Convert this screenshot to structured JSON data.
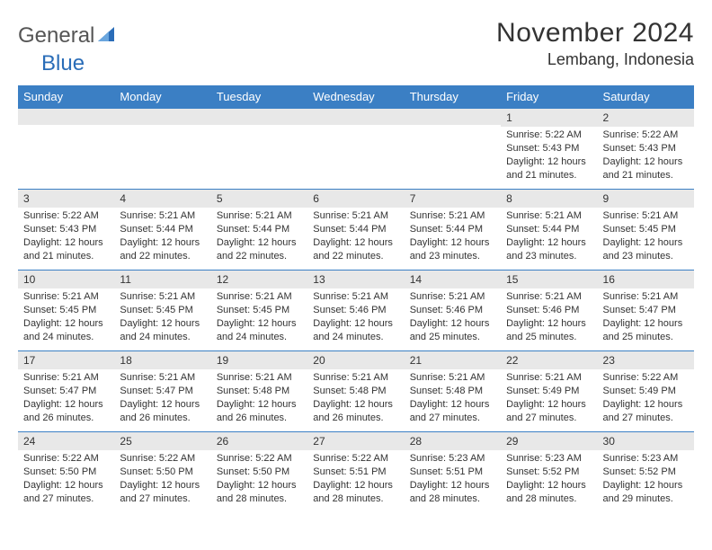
{
  "logo": {
    "word1": "General",
    "word2": "Blue"
  },
  "title": "November 2024",
  "location": "Lembang, Indonesia",
  "colors": {
    "header_bg": "#3b7fc4",
    "header_text": "#ffffff",
    "daynum_bg": "#e8e8e8",
    "border": "#3b7fc4",
    "text": "#333333",
    "logo_gray": "#555555",
    "logo_blue": "#2a6db8"
  },
  "weekdays": [
    "Sunday",
    "Monday",
    "Tuesday",
    "Wednesday",
    "Thursday",
    "Friday",
    "Saturday"
  ],
  "weeks": [
    [
      {
        "n": "",
        "t": ""
      },
      {
        "n": "",
        "t": ""
      },
      {
        "n": "",
        "t": ""
      },
      {
        "n": "",
        "t": ""
      },
      {
        "n": "",
        "t": ""
      },
      {
        "n": "1",
        "t": "Sunrise: 5:22 AM\nSunset: 5:43 PM\nDaylight: 12 hours and 21 minutes."
      },
      {
        "n": "2",
        "t": "Sunrise: 5:22 AM\nSunset: 5:43 PM\nDaylight: 12 hours and 21 minutes."
      }
    ],
    [
      {
        "n": "3",
        "t": "Sunrise: 5:22 AM\nSunset: 5:43 PM\nDaylight: 12 hours and 21 minutes."
      },
      {
        "n": "4",
        "t": "Sunrise: 5:21 AM\nSunset: 5:44 PM\nDaylight: 12 hours and 22 minutes."
      },
      {
        "n": "5",
        "t": "Sunrise: 5:21 AM\nSunset: 5:44 PM\nDaylight: 12 hours and 22 minutes."
      },
      {
        "n": "6",
        "t": "Sunrise: 5:21 AM\nSunset: 5:44 PM\nDaylight: 12 hours and 22 minutes."
      },
      {
        "n": "7",
        "t": "Sunrise: 5:21 AM\nSunset: 5:44 PM\nDaylight: 12 hours and 23 minutes."
      },
      {
        "n": "8",
        "t": "Sunrise: 5:21 AM\nSunset: 5:44 PM\nDaylight: 12 hours and 23 minutes."
      },
      {
        "n": "9",
        "t": "Sunrise: 5:21 AM\nSunset: 5:45 PM\nDaylight: 12 hours and 23 minutes."
      }
    ],
    [
      {
        "n": "10",
        "t": "Sunrise: 5:21 AM\nSunset: 5:45 PM\nDaylight: 12 hours and 24 minutes."
      },
      {
        "n": "11",
        "t": "Sunrise: 5:21 AM\nSunset: 5:45 PM\nDaylight: 12 hours and 24 minutes."
      },
      {
        "n": "12",
        "t": "Sunrise: 5:21 AM\nSunset: 5:45 PM\nDaylight: 12 hours and 24 minutes."
      },
      {
        "n": "13",
        "t": "Sunrise: 5:21 AM\nSunset: 5:46 PM\nDaylight: 12 hours and 24 minutes."
      },
      {
        "n": "14",
        "t": "Sunrise: 5:21 AM\nSunset: 5:46 PM\nDaylight: 12 hours and 25 minutes."
      },
      {
        "n": "15",
        "t": "Sunrise: 5:21 AM\nSunset: 5:46 PM\nDaylight: 12 hours and 25 minutes."
      },
      {
        "n": "16",
        "t": "Sunrise: 5:21 AM\nSunset: 5:47 PM\nDaylight: 12 hours and 25 minutes."
      }
    ],
    [
      {
        "n": "17",
        "t": "Sunrise: 5:21 AM\nSunset: 5:47 PM\nDaylight: 12 hours and 26 minutes."
      },
      {
        "n": "18",
        "t": "Sunrise: 5:21 AM\nSunset: 5:47 PM\nDaylight: 12 hours and 26 minutes."
      },
      {
        "n": "19",
        "t": "Sunrise: 5:21 AM\nSunset: 5:48 PM\nDaylight: 12 hours and 26 minutes."
      },
      {
        "n": "20",
        "t": "Sunrise: 5:21 AM\nSunset: 5:48 PM\nDaylight: 12 hours and 26 minutes."
      },
      {
        "n": "21",
        "t": "Sunrise: 5:21 AM\nSunset: 5:48 PM\nDaylight: 12 hours and 27 minutes."
      },
      {
        "n": "22",
        "t": "Sunrise: 5:21 AM\nSunset: 5:49 PM\nDaylight: 12 hours and 27 minutes."
      },
      {
        "n": "23",
        "t": "Sunrise: 5:22 AM\nSunset: 5:49 PM\nDaylight: 12 hours and 27 minutes."
      }
    ],
    [
      {
        "n": "24",
        "t": "Sunrise: 5:22 AM\nSunset: 5:50 PM\nDaylight: 12 hours and 27 minutes."
      },
      {
        "n": "25",
        "t": "Sunrise: 5:22 AM\nSunset: 5:50 PM\nDaylight: 12 hours and 27 minutes."
      },
      {
        "n": "26",
        "t": "Sunrise: 5:22 AM\nSunset: 5:50 PM\nDaylight: 12 hours and 28 minutes."
      },
      {
        "n": "27",
        "t": "Sunrise: 5:22 AM\nSunset: 5:51 PM\nDaylight: 12 hours and 28 minutes."
      },
      {
        "n": "28",
        "t": "Sunrise: 5:23 AM\nSunset: 5:51 PM\nDaylight: 12 hours and 28 minutes."
      },
      {
        "n": "29",
        "t": "Sunrise: 5:23 AM\nSunset: 5:52 PM\nDaylight: 12 hours and 28 minutes."
      },
      {
        "n": "30",
        "t": "Sunrise: 5:23 AM\nSunset: 5:52 PM\nDaylight: 12 hours and 29 minutes."
      }
    ]
  ]
}
